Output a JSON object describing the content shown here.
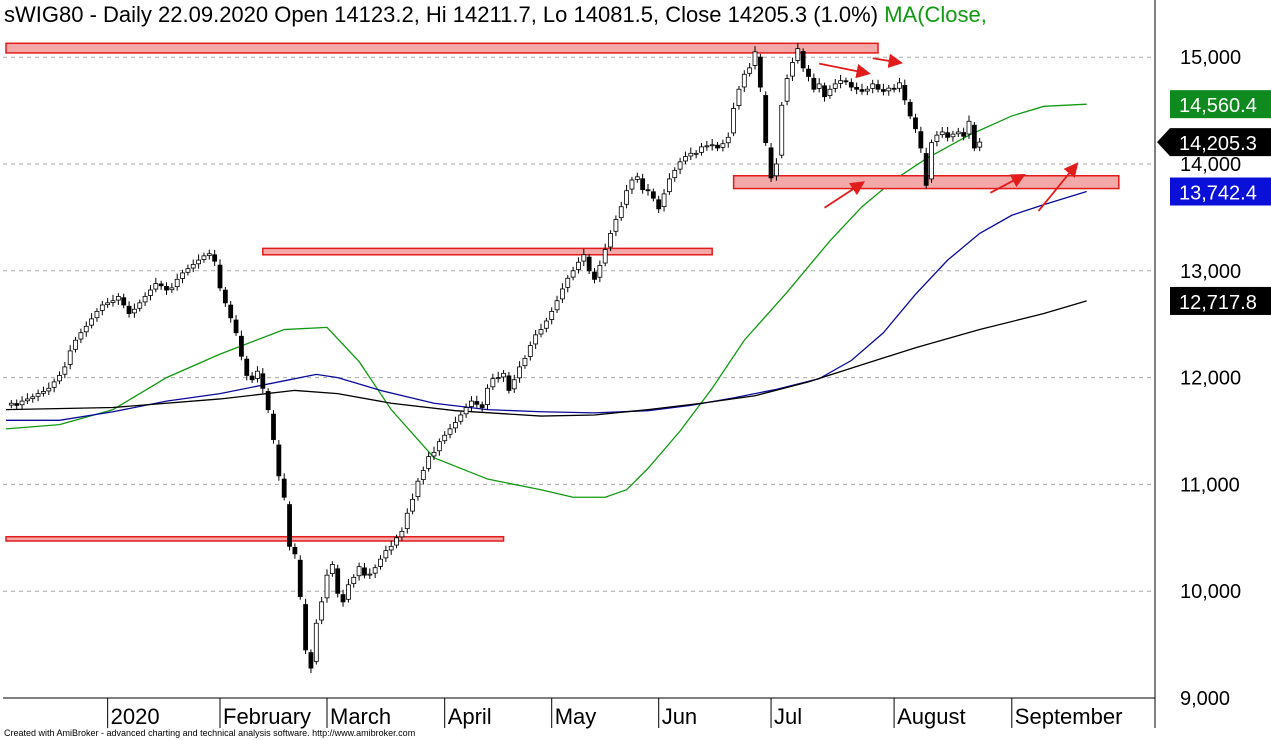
{
  "header": {
    "title": "sWIG80 - Daily 22.09.2020 Open 14123.2, Hi 14211.7, Lo 14081.5, Close 14205.3 (1.0%)",
    "ma_label": "MA(Close,"
  },
  "footer": {
    "credit": "Created with AmiBroker - advanced charting and technical analysis software. http://www.amibroker.com"
  },
  "colors": {
    "ma_short": "#119911",
    "ma_mid": "#0a0a99",
    "ma_long": "#000000",
    "zone_fill": "#f4a9a9",
    "zone_stroke": "#e21b1b",
    "arrow": "#e21b1b",
    "badge_green": "#0f8a1e",
    "badge_blue": "#0b10d8",
    "badge_black": "#000000"
  },
  "chart_data": {
    "type": "candlestick",
    "symbol": "sWIG80",
    "ylim": [
      9000,
      15450
    ],
    "yticks": [
      9000,
      10000,
      11000,
      12000,
      13000,
      14000,
      15000
    ],
    "ytick_labels": [
      "9,000",
      "10,000",
      "11,000",
      "12,000",
      "13,000",
      "14,000",
      "15,000"
    ],
    "xticks": [
      {
        "label": "2020",
        "day": 19
      },
      {
        "label": "February",
        "day": 40
      },
      {
        "label": "March",
        "day": 60
      },
      {
        "label": "April",
        "day": 82
      },
      {
        "label": "May",
        "day": 102
      },
      {
        "label": "Jun",
        "day": 122
      },
      {
        "label": "Jul",
        "day": 143
      },
      {
        "label": "August",
        "day": 166
      },
      {
        "label": "September",
        "day": 188
      }
    ],
    "price_badges": [
      {
        "label": "14,560.4",
        "value": 14560.4,
        "color": "#0f8a1e",
        "text_color": "#ffffff",
        "pointer": false
      },
      {
        "label": "14,205.3",
        "value": 14205.3,
        "color": "#000000",
        "text_color": "#ffffff",
        "pointer": true
      },
      {
        "label": "13,742.4",
        "value": 13742.4,
        "color": "#0b10d8",
        "text_color": "#ffffff",
        "pointer": false
      },
      {
        "label": "12,717.8",
        "value": 12717.8,
        "color": "#000000",
        "text_color": "#ffffff",
        "pointer": false
      }
    ],
    "zones": [
      {
        "name": "resistance-top",
        "x_from_day": 0,
        "x_to_day": 163,
        "low": 15040,
        "high": 15130
      },
      {
        "name": "resistance-feb",
        "x_from_day": 48,
        "x_to_day": 132,
        "low": 13150,
        "high": 13210
      },
      {
        "name": "support-zone",
        "x_from_day": 136,
        "x_to_day": 208,
        "low": 13770,
        "high": 13890
      },
      {
        "name": "support-march",
        "x_from_day": 0,
        "x_to_day": 93,
        "low": 10470,
        "high": 10510
      }
    ],
    "arrows": [
      {
        "from": [
          152,
          14940
        ],
        "to": [
          161,
          14850
        ]
      },
      {
        "from": [
          162,
          14990
        ],
        "to": [
          167,
          14950
        ]
      },
      {
        "from": [
          153,
          13590
        ],
        "to": [
          160,
          13820
        ]
      },
      {
        "from": [
          184,
          13730
        ],
        "to": [
          190,
          13890
        ]
      },
      {
        "from": [
          193,
          13560
        ],
        "to": [
          200,
          13990
        ]
      }
    ],
    "candles": [],
    "ma_series": [
      {
        "color": "#119911",
        "points": [
          [
            0,
            11520
          ],
          [
            10,
            11560
          ],
          [
            20,
            11700
          ],
          [
            30,
            12000
          ],
          [
            40,
            12220
          ],
          [
            52,
            12450
          ],
          [
            60,
            12470
          ],
          [
            66,
            12150
          ],
          [
            72,
            11700
          ],
          [
            80,
            11250
          ],
          [
            90,
            11050
          ],
          [
            100,
            10950
          ],
          [
            106,
            10880
          ],
          [
            112,
            10880
          ],
          [
            116,
            10950
          ],
          [
            120,
            11150
          ],
          [
            126,
            11500
          ],
          [
            132,
            11900
          ],
          [
            138,
            12350
          ],
          [
            146,
            12800
          ],
          [
            154,
            13280
          ],
          [
            160,
            13600
          ],
          [
            166,
            13850
          ],
          [
            172,
            14050
          ],
          [
            180,
            14270
          ],
          [
            188,
            14450
          ],
          [
            194,
            14540
          ],
          [
            202,
            14560
          ]
        ]
      },
      {
        "color": "#0a0a99",
        "points": [
          [
            0,
            11600
          ],
          [
            10,
            11600
          ],
          [
            20,
            11680
          ],
          [
            30,
            11780
          ],
          [
            40,
            11850
          ],
          [
            52,
            11970
          ],
          [
            58,
            12030
          ],
          [
            62,
            12000
          ],
          [
            70,
            11880
          ],
          [
            80,
            11760
          ],
          [
            90,
            11700
          ],
          [
            100,
            11680
          ],
          [
            110,
            11670
          ],
          [
            120,
            11690
          ],
          [
            128,
            11740
          ],
          [
            136,
            11810
          ],
          [
            144,
            11890
          ],
          [
            152,
            11990
          ],
          [
            158,
            12160
          ],
          [
            164,
            12420
          ],
          [
            170,
            12780
          ],
          [
            176,
            13100
          ],
          [
            182,
            13350
          ],
          [
            188,
            13520
          ],
          [
            194,
            13620
          ],
          [
            202,
            13742
          ]
        ]
      },
      {
        "color": "#000000",
        "points": [
          [
            0,
            11700
          ],
          [
            20,
            11720
          ],
          [
            40,
            11800
          ],
          [
            54,
            11880
          ],
          [
            62,
            11850
          ],
          [
            72,
            11760
          ],
          [
            84,
            11690
          ],
          [
            100,
            11640
          ],
          [
            110,
            11650
          ],
          [
            120,
            11700
          ],
          [
            130,
            11760
          ],
          [
            140,
            11830
          ],
          [
            150,
            11960
          ],
          [
            160,
            12120
          ],
          [
            170,
            12280
          ],
          [
            182,
            12450
          ],
          [
            194,
            12600
          ],
          [
            202,
            12718
          ]
        ]
      }
    ]
  }
}
